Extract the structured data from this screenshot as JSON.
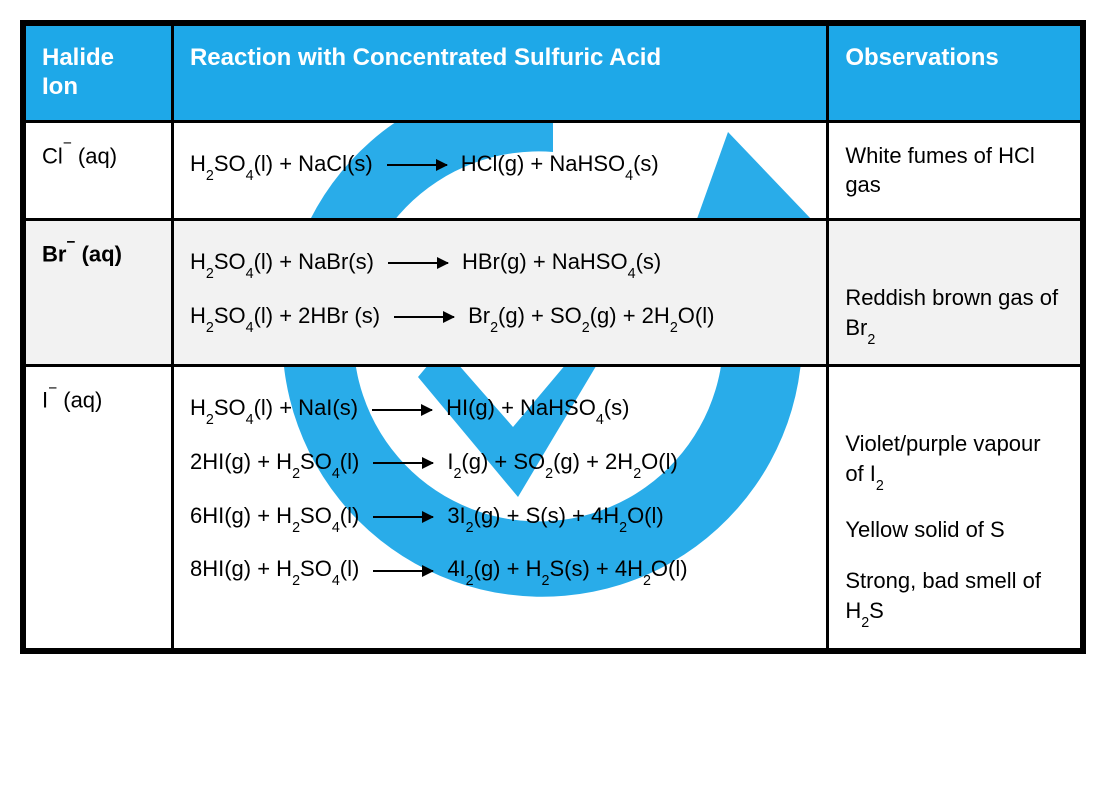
{
  "colors": {
    "header_bg": "#1ea8e8",
    "header_fg": "#ffffff",
    "border": "#000000",
    "highlight_row_bg": "#f2f2f2",
    "text": "#000000",
    "watermark": "#1ea8e8"
  },
  "typography": {
    "font_family": "Comic Sans MS, Segoe Script, cursive",
    "header_fontsize": 24,
    "body_fontsize": 22
  },
  "columns": [
    {
      "key": "ion",
      "label": "Halide Ion",
      "width_pct": 14
    },
    {
      "key": "reaction",
      "label": "Reaction with Concentrated Sulfuric Acid",
      "width_pct": 62
    },
    {
      "key": "obs",
      "label": "Observations",
      "width_pct": 24
    }
  ],
  "rows": [
    {
      "highlight": false,
      "ion_html": "Cl<sup>−</sup> (aq)",
      "equations": [
        {
          "lhs": "H<sub>2</sub>SO<sub>4</sub>(l) + NaCl(s)",
          "rhs": "HCl(g) + NaHSO<sub>4</sub>(s)"
        }
      ],
      "observations": [
        "White fumes of HCl gas"
      ]
    },
    {
      "highlight": true,
      "ion_bold": true,
      "ion_html": "Br<sup>−</sup> (aq)",
      "equations": [
        {
          "lhs": "H<sub>2</sub>SO<sub>4</sub>(l) + NaBr(s)",
          "rhs": "HBr(g) + NaHSO<sub>4</sub>(s)"
        },
        {
          "lhs": "H<sub>2</sub>SO<sub>4</sub>(l) + 2HBr (s)",
          "rhs": "Br<sub>2</sub>(g) + SO<sub>2</sub>(g) + 2H<sub>2</sub>O(l)"
        }
      ],
      "observations": [
        "",
        "Reddish brown gas of Br<sub>2</sub>"
      ]
    },
    {
      "highlight": false,
      "ion_html": "I<sup>−</sup> (aq)",
      "equations": [
        {
          "lhs": "H<sub>2</sub>SO<sub>4</sub>(l) + NaI(s)",
          "rhs": "HI(g) + NaHSO<sub>4</sub>(s)"
        },
        {
          "lhs": "2HI(g) + H<sub>2</sub>SO<sub>4</sub>(l)",
          "rhs": "I<sub>2</sub>(g) + SO<sub>2</sub>(g) + 2H<sub>2</sub>O(l)"
        },
        {
          "lhs": "6HI(g) + H<sub>2</sub>SO<sub>4</sub>(l)",
          "rhs": "3I<sub>2</sub>(g) + S(s) + 4H<sub>2</sub>O(l)"
        },
        {
          "lhs": "8HI(g) + H<sub>2</sub>SO<sub>4</sub>(l)",
          "rhs": "4I<sub>2</sub>(g) + H<sub>2</sub>S(s) + 4H<sub>2</sub>O(l)"
        }
      ],
      "observations": [
        "",
        "Violet/purple vapour of I<sub>2</sub>",
        "Yellow solid of S",
        "Strong, bad smell of H<sub>2</sub>S"
      ]
    }
  ]
}
